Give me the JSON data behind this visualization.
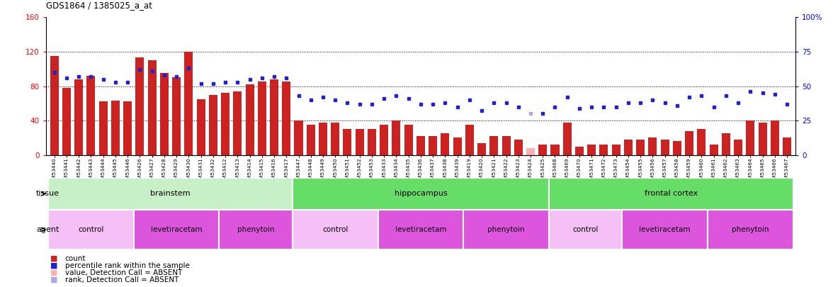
{
  "title": "GDS1864 / 1385025_a_at",
  "samples": [
    "GSM53440",
    "GSM53441",
    "GSM53442",
    "GSM53443",
    "GSM53444",
    "GSM53445",
    "GSM53446",
    "GSM53426",
    "GSM53427",
    "GSM53428",
    "GSM53429",
    "GSM53430",
    "GSM53431",
    "GSM53432",
    "GSM53412",
    "GSM53413",
    "GSM53414",
    "GSM53415",
    "GSM53416",
    "GSM53417",
    "GSM53447",
    "GSM53448",
    "GSM53449",
    "GSM53450",
    "GSM53451",
    "GSM53452",
    "GSM53453",
    "GSM53433",
    "GSM53434",
    "GSM53435",
    "GSM53436",
    "GSM53437",
    "GSM53438",
    "GSM53439",
    "GSM53419",
    "GSM53420",
    "GSM53421",
    "GSM53422",
    "GSM53423",
    "GSM53424",
    "GSM53425",
    "GSM53468",
    "GSM53469",
    "GSM53470",
    "GSM53471",
    "GSM53472",
    "GSM53473",
    "GSM53454",
    "GSM53455",
    "GSM53456",
    "GSM53457",
    "GSM53458",
    "GSM53459",
    "GSM53460",
    "GSM53461",
    "GSM53462",
    "GSM53463",
    "GSM53464",
    "GSM53465",
    "GSM53466",
    "GSM53467"
  ],
  "counts": [
    115,
    78,
    88,
    92,
    62,
    63,
    62,
    113,
    110,
    95,
    90,
    120,
    65,
    70,
    72,
    74,
    82,
    85,
    88,
    85,
    40,
    35,
    38,
    38,
    30,
    30,
    30,
    35,
    40,
    35,
    22,
    22,
    25,
    20,
    35,
    14,
    22,
    22,
    18,
    8,
    12,
    12,
    38,
    10,
    12,
    12,
    12,
    18,
    18,
    20,
    18,
    16,
    28,
    30,
    12,
    25,
    18,
    40,
    38,
    40,
    20
  ],
  "ranks": [
    60,
    56,
    57,
    57,
    55,
    53,
    53,
    62,
    61,
    58,
    57,
    63,
    52,
    52,
    53,
    53,
    55,
    56,
    57,
    56,
    43,
    40,
    42,
    40,
    38,
    37,
    37,
    41,
    43,
    41,
    37,
    37,
    38,
    35,
    40,
    32,
    38,
    38,
    35,
    30,
    30,
    35,
    42,
    34,
    35,
    35,
    35,
    38,
    38,
    40,
    38,
    36,
    42,
    43,
    35,
    43,
    38,
    46,
    45,
    44,
    37
  ],
  "absent_flags": [
    false,
    false,
    false,
    false,
    false,
    false,
    false,
    false,
    false,
    false,
    false,
    false,
    false,
    false,
    false,
    false,
    false,
    false,
    false,
    false,
    false,
    false,
    false,
    false,
    false,
    false,
    false,
    false,
    false,
    false,
    false,
    false,
    false,
    false,
    false,
    false,
    false,
    false,
    false,
    true,
    false,
    false,
    false,
    false,
    false,
    false,
    false,
    false,
    false,
    false,
    false,
    false,
    false,
    false,
    false,
    false,
    false,
    false,
    false,
    false,
    false
  ],
  "tissue_groups": [
    {
      "label": "brainstem",
      "start": 0,
      "end": 19,
      "color": "#c8f0c8"
    },
    {
      "label": "hippocampus",
      "start": 20,
      "end": 40,
      "color": "#66dd66"
    },
    {
      "label": "frontal cortex",
      "start": 41,
      "end": 60,
      "color": "#66dd66"
    }
  ],
  "agent_groups": [
    {
      "label": "control",
      "start": 0,
      "end": 6,
      "color": "#f5c0f5"
    },
    {
      "label": "levetiracetam",
      "start": 7,
      "end": 13,
      "color": "#dd55dd"
    },
    {
      "label": "phenytoin",
      "start": 14,
      "end": 19,
      "color": "#dd55dd"
    },
    {
      "label": "control",
      "start": 20,
      "end": 26,
      "color": "#f5c0f5"
    },
    {
      "label": "levetiracetam",
      "start": 27,
      "end": 33,
      "color": "#dd55dd"
    },
    {
      "label": "phenytoin",
      "start": 34,
      "end": 40,
      "color": "#dd55dd"
    },
    {
      "label": "control",
      "start": 41,
      "end": 46,
      "color": "#f5c0f5"
    },
    {
      "label": "levetiracetam",
      "start": 47,
      "end": 53,
      "color": "#dd55dd"
    },
    {
      "label": "phenytoin",
      "start": 54,
      "end": 60,
      "color": "#dd55dd"
    }
  ],
  "ylim_left": [
    0,
    160
  ],
  "ylim_right": [
    0,
    100
  ],
  "yticks_left": [
    0,
    40,
    80,
    120,
    160
  ],
  "yticks_right": [
    0,
    25,
    50,
    75,
    100
  ],
  "bar_color": "#cc2222",
  "bar_absent_color": "#ffb0b0",
  "dot_color": "#2222cc",
  "dot_absent_color": "#aaaadd",
  "bg_color": "#ffffff"
}
